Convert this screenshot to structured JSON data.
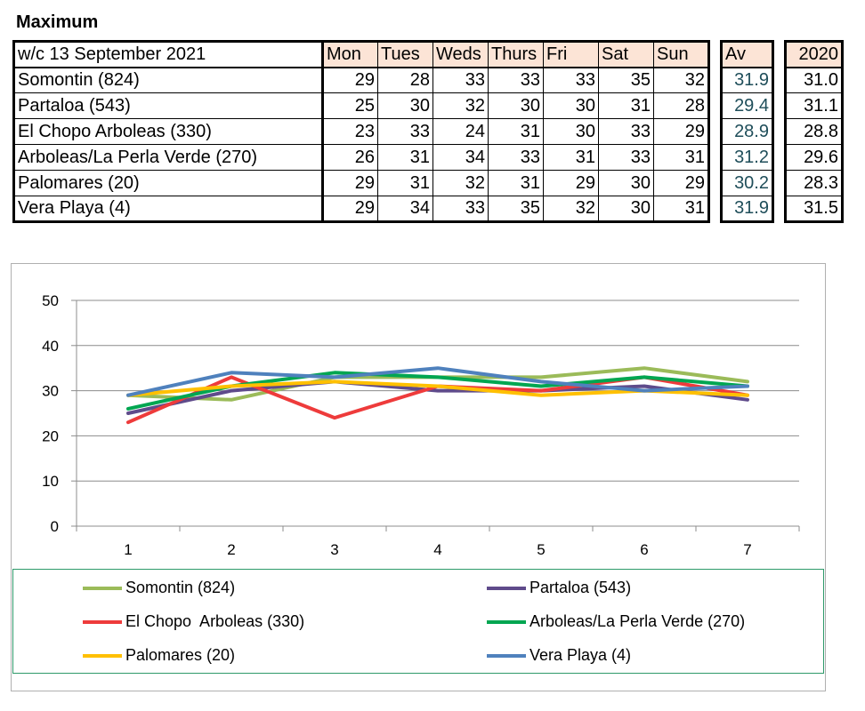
{
  "title": "Maximum",
  "table": {
    "week_label": "w/c 13 September 2021",
    "days": [
      "Mon",
      "Tues",
      "Weds",
      "Thurs",
      "Fri",
      "Sat",
      "Sun"
    ],
    "av_label": "Av",
    "year_label": "2020",
    "rows": [
      {
        "name": "Somontin (824)",
        "values": [
          "29",
          "28",
          "33",
          "33",
          "33",
          "35",
          "32"
        ],
        "av": "31.9",
        "prev": "31.0"
      },
      {
        "name": "Partaloa (543)",
        "values": [
          "25",
          "30",
          "32",
          "30",
          "30",
          "31",
          "28"
        ],
        "av": "29.4",
        "prev": "31.1"
      },
      {
        "name": "El Chopo  Arboleas (330)",
        "values": [
          "23",
          "33",
          "24",
          "31",
          "30",
          "33",
          "29"
        ],
        "av": "28.9",
        "prev": "28.8"
      },
      {
        "name": "Arboleas/La Perla Verde (270)",
        "values": [
          "26",
          "31",
          "34",
          "33",
          "31",
          "33",
          "31"
        ],
        "av": "31.2",
        "prev": "29.6"
      },
      {
        "name": "Palomares (20)",
        "values": [
          "29",
          "31",
          "32",
          "31",
          "29",
          "30",
          "29"
        ],
        "av": "30.2",
        "prev": "28.3"
      },
      {
        "name": "Vera Playa (4)",
        "values": [
          "29",
          "34",
          "33",
          "35",
          "32",
          "30",
          "31"
        ],
        "av": "31.9",
        "prev": "31.5"
      }
    ]
  },
  "chart_data": {
    "type": "line",
    "title": "",
    "xlabel": "",
    "ylabel": "",
    "x": [
      1,
      2,
      3,
      4,
      5,
      6,
      7
    ],
    "ylim": [
      0,
      50
    ],
    "yticks": [
      0,
      10,
      20,
      30,
      40,
      50
    ],
    "grid": true,
    "legend_position": "bottom",
    "series": [
      {
        "name": "Somontin (824)",
        "color": "#9bbb59",
        "values": [
          29,
          28,
          33,
          33,
          33,
          35,
          32
        ]
      },
      {
        "name": "Partaloa (543)",
        "color": "#5f4b8b",
        "values": [
          25,
          30,
          32,
          30,
          30,
          31,
          28
        ]
      },
      {
        "name": "El Chopo  Arboleas (330)",
        "color": "#ee3b3b",
        "values": [
          23,
          33,
          24,
          31,
          30,
          33,
          29
        ]
      },
      {
        "name": "Arboleas/La Perla Verde (270)",
        "color": "#00a651",
        "values": [
          26,
          31,
          34,
          33,
          31,
          33,
          31
        ]
      },
      {
        "name": "Palomares (20)",
        "color": "#ffc000",
        "values": [
          29,
          31,
          32,
          31,
          29,
          30,
          29
        ]
      },
      {
        "name": "Vera Playa (4)",
        "color": "#4f81bd",
        "values": [
          29,
          34,
          33,
          35,
          32,
          30,
          31
        ]
      }
    ]
  }
}
